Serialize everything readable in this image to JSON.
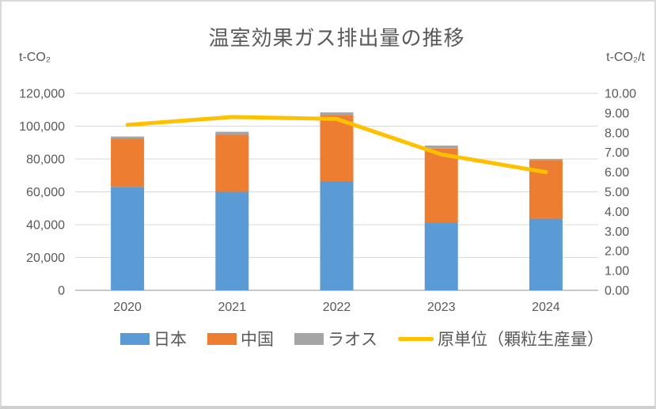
{
  "chart_data": {
    "type": "combo-stacked-bar-line",
    "title": "温室効果ガス排出量の推移",
    "categories": [
      "2020",
      "2021",
      "2022",
      "2023",
      "2024"
    ],
    "stacked": true,
    "grid": true,
    "legend_position": "bottom",
    "series": [
      {
        "name": "日本",
        "color": "#5B9BD5",
        "axis": "left",
        "values": [
          63000,
          60000,
          66500,
          41200,
          43600
        ]
      },
      {
        "name": "中国",
        "color": "#ED7D31",
        "axis": "left",
        "values": [
          29500,
          34700,
          40000,
          45200,
          35800
        ]
      },
      {
        "name": "ラオス",
        "color": "#A5A5A5",
        "axis": "left",
        "values": [
          1200,
          1900,
          1900,
          1800,
          600
        ]
      }
    ],
    "line_series": [
      {
        "name": "原単位（顆粒生産量）",
        "color": "#FFC000",
        "axis": "right",
        "values": [
          8.4,
          8.8,
          8.7,
          6.9,
          6.0
        ]
      }
    ],
    "left_axis": {
      "label": "t-CO₂",
      "min": 0,
      "max": 120000,
      "major": 20000,
      "ticks": [
        "0",
        "20,000",
        "40,000",
        "60,000",
        "80,000",
        "100,000",
        "120,000"
      ]
    },
    "right_axis": {
      "label": "t-CO₂/t",
      "min": 0,
      "max": 10,
      "major": 1,
      "ticks": [
        "0.00",
        "1.00",
        "2.00",
        "3.00",
        "4.00",
        "5.00",
        "6.00",
        "7.00",
        "8.00",
        "9.00",
        "10.00"
      ]
    }
  },
  "legend": {
    "items": [
      {
        "label": "日本",
        "color": "#5B9BD5",
        "marker": "square"
      },
      {
        "label": "中国",
        "color": "#ED7D31",
        "marker": "square"
      },
      {
        "label": "ラオス",
        "color": "#A5A5A5",
        "marker": "square"
      },
      {
        "label": "原単位（顆粒生産量）",
        "color": "#FFC000",
        "marker": "line"
      }
    ]
  },
  "colors": {
    "text": "#595959",
    "gridline": "#D9D9D9",
    "axis_line": "#C9C9C9",
    "background": "#FFFFFF"
  }
}
